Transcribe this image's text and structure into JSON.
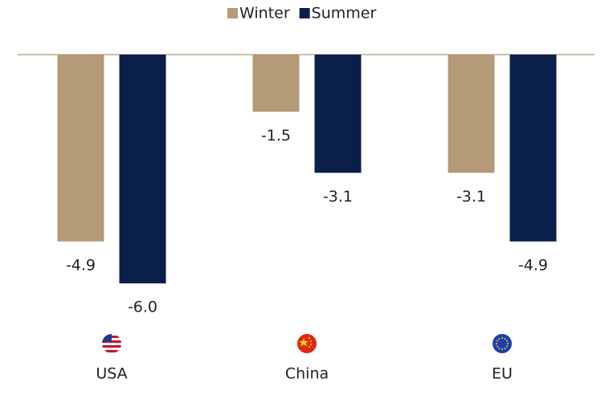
{
  "chart_data": {
    "type": "bar",
    "categories": [
      "USA",
      "China",
      "EU"
    ],
    "series": [
      {
        "name": "Winter",
        "color": "#b59a77",
        "values": [
          -4.9,
          -1.5,
          -3.1
        ],
        "value_labels": [
          "-4.9",
          "-1.5",
          "-3.1"
        ]
      },
      {
        "name": "Summer",
        "color": "#0b1f4b",
        "values": [
          -6,
          -3.1,
          -4.9
        ],
        "value_labels": [
          "-6.0",
          "-3.1",
          "-4.9"
        ]
      }
    ]
  }
}
